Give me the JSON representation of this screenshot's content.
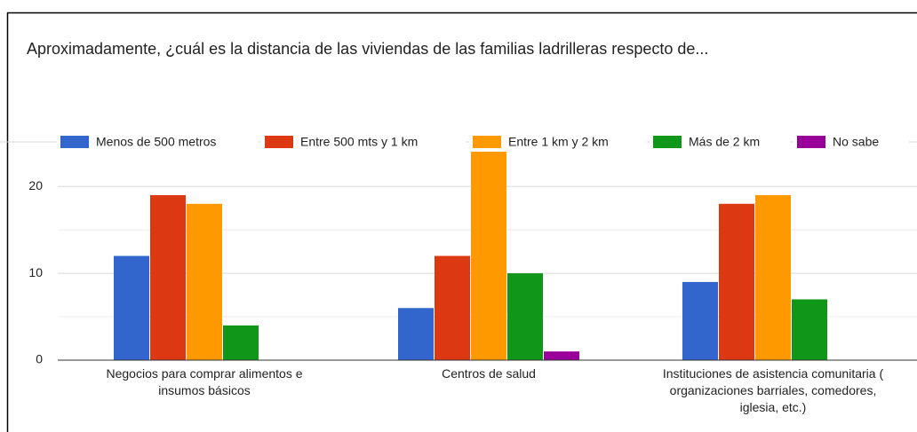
{
  "chart_data": {
    "type": "bar",
    "title": "Aproximadamente, ¿cuál es la distancia de las viviendas de las familias ladrilleras respecto de...",
    "categories": [
      "Negocios para comprar alimentos e insumos básicos",
      "Centros de salud",
      "Instituciones de asistencia comunitaria ( organizaciones barriales, comedores, iglesia, etc.)"
    ],
    "series": [
      {
        "name": "Menos de 500 metros",
        "color": "#3366cc",
        "values": [
          12,
          6,
          9
        ]
      },
      {
        "name": "Entre 500 mts y 1 km",
        "color": "#dc3912",
        "values": [
          19,
          12,
          18
        ]
      },
      {
        "name": "Entre 1 km y 2 km",
        "color": "#ff9900",
        "values": [
          18,
          24,
          19
        ]
      },
      {
        "name": "Más de 2 km",
        "color": "#109618",
        "values": [
          4,
          10,
          7
        ]
      },
      {
        "name": "No sabe",
        "color": "#990099",
        "values": [
          0,
          1,
          0
        ]
      }
    ],
    "ylim": [
      0,
      24
    ],
    "yticks": [
      0,
      10,
      20
    ],
    "minor_yticks": [
      5,
      15
    ],
    "grid": true,
    "legend": "top"
  }
}
